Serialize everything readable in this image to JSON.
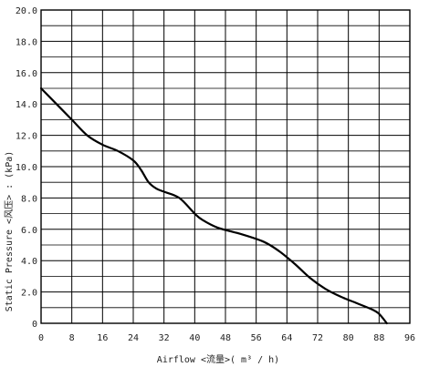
{
  "chart_data": {
    "type": "line",
    "xlabel": "Airflow  <流量>( m³ / h)",
    "ylabel": "Static  Pressure  <风压> : (kPa)",
    "xlim": [
      0,
      96
    ],
    "ylim": [
      0,
      20
    ],
    "x_ticks": [
      "0",
      "8",
      "16",
      "24",
      "32",
      "40",
      "48",
      "56",
      "64",
      "72",
      "80",
      "88",
      "96"
    ],
    "y_ticks": [
      "0",
      "2.0",
      "4.0",
      "6.0",
      "8.0",
      "10.0",
      "12.0",
      "14.0",
      "16.0",
      "18.0",
      "20.0"
    ],
    "grid": true,
    "series": [
      {
        "x": [
          0,
          4,
          8,
          12,
          16,
          20,
          24,
          26,
          28,
          30,
          32,
          36,
          40,
          42,
          46,
          52,
          58,
          62,
          66,
          70,
          74,
          78,
          82,
          86,
          88,
          90
        ],
        "y": [
          15.0,
          14.0,
          13.0,
          12.0,
          11.4,
          11.0,
          10.4,
          9.8,
          9.0,
          8.6,
          8.4,
          8.0,
          7.0,
          6.6,
          6.1,
          5.7,
          5.2,
          4.6,
          3.8,
          2.9,
          2.2,
          1.7,
          1.3,
          0.9,
          0.6,
          0.0
        ]
      }
    ]
  }
}
